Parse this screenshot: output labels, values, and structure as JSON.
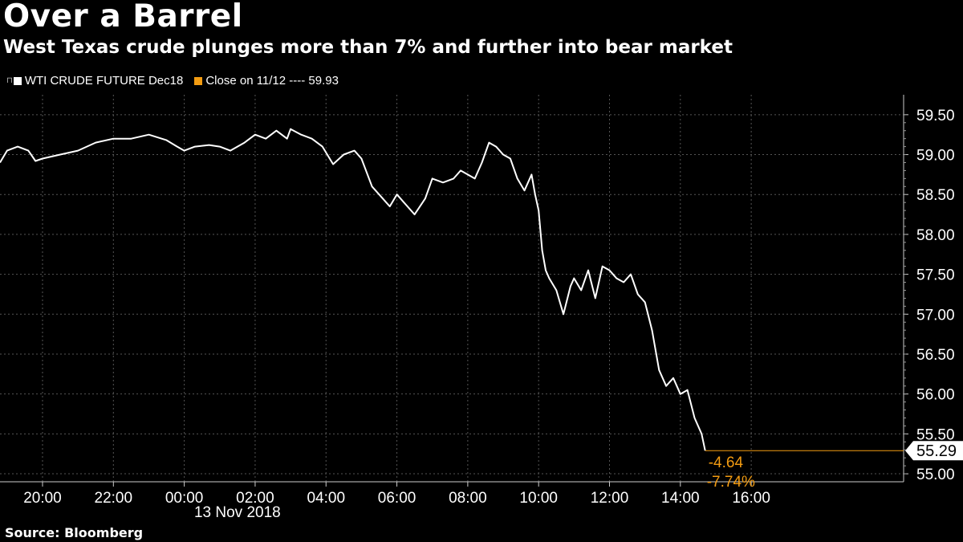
{
  "chart_data": {
    "type": "line",
    "title": "Over a Barrel",
    "subtitle": "West Texas crude plunges more than 7% and further into bear market",
    "source": "Source: Bloomberg",
    "date_label": "13 Nov 2018",
    "legend": [
      {
        "name": "WTI CRUDE FUTURE Dec18",
        "color": "#ffffff"
      },
      {
        "name": "Close on 11/12 ---- 59.93",
        "color": "#f39c12"
      }
    ],
    "x_ticks": [
      "20:00",
      "22:00",
      "00:00",
      "02:00",
      "04:00",
      "06:00",
      "08:00",
      "10:00",
      "12:00",
      "14:00",
      "16:00"
    ],
    "y_ticks": [
      "59.50",
      "59.00",
      "58.50",
      "58.00",
      "57.50",
      "57.00",
      "56.50",
      "56.00",
      "55.50",
      "55.00"
    ],
    "ylim": [
      54.9,
      59.75
    ],
    "y_tick_values": [
      59.5,
      59.0,
      58.5,
      58.0,
      57.5,
      57.0,
      56.5,
      56.0,
      55.5,
      55.0
    ],
    "x_range_hours": [
      -5.2,
      20.3
    ],
    "x_tick_hours": [
      -4,
      -2,
      0,
      2,
      4,
      6,
      8,
      10,
      12,
      14,
      16
    ],
    "series": [
      {
        "name": "WTI CRUDE FUTURE Dec18",
        "color": "#ffffff",
        "x_hours": [
          -5.2,
          -5.0,
          -4.7,
          -4.4,
          -4.2,
          -4.0,
          -3.8,
          -3.5,
          -3.0,
          -2.5,
          -2.0,
          -1.5,
          -1.0,
          -0.5,
          -0.2,
          0.0,
          0.3,
          0.7,
          1.0,
          1.3,
          1.7,
          2.0,
          2.3,
          2.6,
          2.9,
          3.0,
          3.3,
          3.6,
          3.9,
          4.2,
          4.5,
          4.8,
          5.0,
          5.3,
          5.6,
          5.8,
          6.0,
          6.2,
          6.5,
          6.8,
          7.0,
          7.3,
          7.6,
          7.8,
          8.0,
          8.2,
          8.4,
          8.6,
          8.8,
          9.0,
          9.2,
          9.4,
          9.6,
          9.8,
          9.9,
          10.0,
          10.1,
          10.2,
          10.3,
          10.5,
          10.7,
          10.9,
          11.0,
          11.2,
          11.4,
          11.6,
          11.8,
          12.0,
          12.2,
          12.4,
          12.6,
          12.8,
          13.0,
          13.2,
          13.4,
          13.6,
          13.8,
          14.0,
          14.2,
          14.4,
          14.6,
          14.7
        ],
        "values": [
          58.9,
          59.05,
          59.1,
          59.05,
          58.92,
          58.95,
          58.97,
          59.0,
          59.05,
          59.15,
          59.2,
          59.2,
          59.25,
          59.18,
          59.1,
          59.05,
          59.1,
          59.12,
          59.1,
          59.05,
          59.15,
          59.25,
          59.2,
          59.3,
          59.2,
          59.32,
          59.25,
          59.2,
          59.1,
          58.88,
          59.0,
          59.05,
          58.95,
          58.6,
          58.45,
          58.35,
          58.5,
          58.4,
          58.25,
          58.45,
          58.7,
          58.65,
          58.7,
          58.8,
          58.75,
          58.7,
          58.9,
          59.15,
          59.1,
          59.0,
          58.95,
          58.7,
          58.55,
          58.75,
          58.5,
          58.3,
          57.8,
          57.55,
          57.45,
          57.3,
          57.0,
          57.35,
          57.45,
          57.3,
          57.55,
          57.2,
          57.6,
          57.55,
          57.45,
          57.4,
          57.5,
          57.25,
          57.15,
          56.8,
          56.3,
          56.1,
          56.2,
          56.0,
          56.05,
          55.7,
          55.5,
          55.29
        ]
      }
    ],
    "reference_line": {
      "name": "Close on 11/12",
      "value": 59.93,
      "color": "#f39c12"
    },
    "last_value": "55.29",
    "change_abs": "-4.64",
    "change_pct": "-7.74%"
  }
}
